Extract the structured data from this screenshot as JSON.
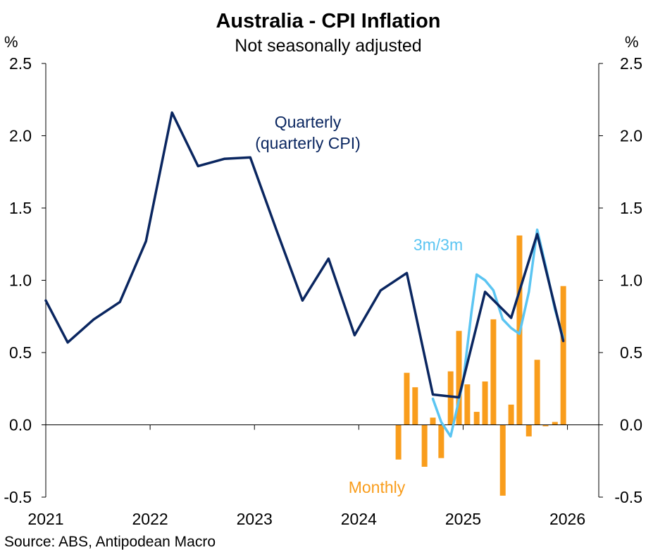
{
  "chart_data": {
    "type": "bar+line",
    "title": "Australia - CPI Inflation",
    "subtitle": "Not seasonally adjusted",
    "ylabel_left": "%",
    "ylabel_right": "%",
    "ylim": [
      -0.5,
      2.5
    ],
    "yticks": [
      "-0.5",
      "0.0",
      "0.5",
      "1.0",
      "1.5",
      "2.0",
      "2.5"
    ],
    "xticks": [
      "2021",
      "2022",
      "2023",
      "2024",
      "2025",
      "2026"
    ],
    "xlim": [
      2021.0,
      2026.3
    ],
    "source": "Source: ABS, Antipodean Macro",
    "series": [
      {
        "name": "Quarterly",
        "label_lines": [
          "Quarterly",
          "(quarterly CPI)"
        ],
        "kind": "line",
        "color": "#0a2660",
        "points": [
          [
            2021.0,
            0.86
          ],
          [
            2021.21,
            0.57
          ],
          [
            2021.46,
            0.73
          ],
          [
            2021.71,
            0.85
          ],
          [
            2021.96,
            1.27
          ],
          [
            2022.21,
            2.16
          ],
          [
            2022.46,
            1.79
          ],
          [
            2022.71,
            1.84
          ],
          [
            2022.96,
            1.85
          ],
          [
            2023.21,
            1.35
          ],
          [
            2023.46,
            0.86
          ],
          [
            2023.71,
            1.15
          ],
          [
            2023.96,
            0.62
          ],
          [
            2024.21,
            0.93
          ],
          [
            2024.46,
            1.05
          ],
          [
            2024.71,
            0.21
          ],
          [
            2024.96,
            0.19
          ],
          [
            2025.21,
            0.92
          ],
          [
            2025.46,
            0.74
          ],
          [
            2025.71,
            1.32
          ],
          [
            2025.96,
            0.58
          ]
        ]
      },
      {
        "name": "3m/3m",
        "label": "3m/3m",
        "kind": "line",
        "color": "#5bc5f2",
        "points": [
          [
            2024.71,
            0.18
          ],
          [
            2024.79,
            0.02
          ],
          [
            2024.88,
            -0.08
          ],
          [
            2025.0,
            0.3
          ],
          [
            2025.08,
            0.78
          ],
          [
            2025.13,
            1.04
          ],
          [
            2025.21,
            1.0
          ],
          [
            2025.29,
            0.93
          ],
          [
            2025.38,
            0.73
          ],
          [
            2025.46,
            0.67
          ],
          [
            2025.54,
            0.63
          ],
          [
            2025.63,
            0.92
          ],
          [
            2025.71,
            1.35
          ],
          [
            2025.79,
            1.1
          ],
          [
            2025.88,
            0.8
          ],
          [
            2025.96,
            0.6
          ]
        ]
      },
      {
        "name": "Monthly",
        "label": "Monthly",
        "kind": "bar",
        "color": "#f99d1c",
        "x": [
          2024.38,
          2024.46,
          2024.54,
          2024.63,
          2024.71,
          2024.79,
          2024.88,
          2024.96,
          2025.04,
          2025.13,
          2025.21,
          2025.29,
          2025.38,
          2025.46,
          2025.54,
          2025.63,
          2025.71,
          2025.79,
          2025.88,
          2025.96
        ],
        "values": [
          -0.24,
          0.36,
          0.26,
          -0.29,
          0.05,
          -0.23,
          0.37,
          0.65,
          0.28,
          0.09,
          0.3,
          0.73,
          -0.49,
          0.14,
          1.31,
          -0.08,
          0.45,
          -0.01,
          0.02,
          0.96
        ]
      }
    ]
  }
}
